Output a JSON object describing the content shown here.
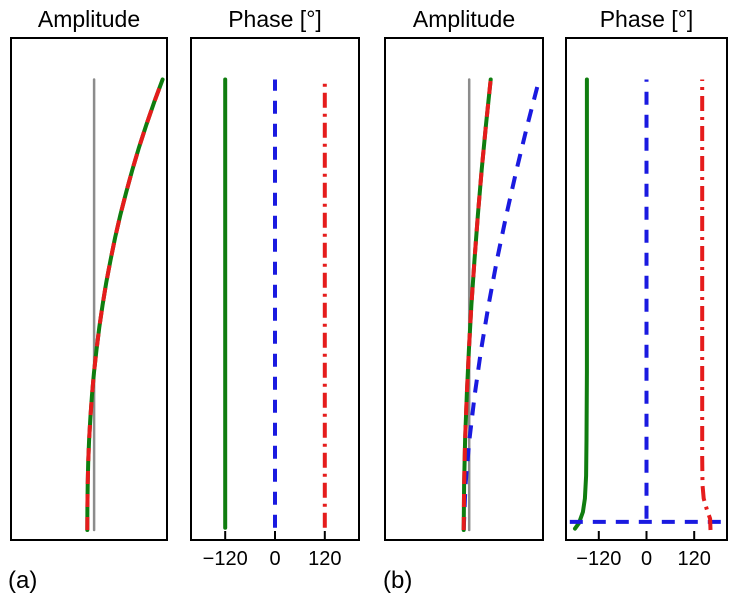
{
  "figure": {
    "panel_a_label": "(a)",
    "panel_b_label": "(b)"
  },
  "chart_data": [
    {
      "id": "a-amplitude",
      "type": "line",
      "title": "Amplitude",
      "group": "(a)",
      "xlabel": "",
      "ylabel": "",
      "grid": false,
      "legend": "none",
      "xlim": [
        -1.2,
        1.05
      ],
      "ylim": [
        -0.02,
        1.09
      ],
      "series": [
        {
          "name": "undeformed-reference-gray",
          "color": "#8c8c8c",
          "width": 2.5,
          "style": "solid",
          "points": [
            [
              0,
              0
            ],
            [
              0,
              1
            ]
          ]
        },
        {
          "name": "amplitude-green-solid",
          "color": "#0f7d0f",
          "width": 4,
          "style": "solid",
          "points": [
            [
              -0.1,
              0
            ],
            [
              -0.099,
              0.05
            ],
            [
              -0.094,
              0.1
            ],
            [
              -0.086,
              0.15
            ],
            [
              -0.073,
              0.2
            ],
            [
              -0.055,
              0.25
            ],
            [
              -0.031,
              0.3
            ],
            [
              -0.002,
              0.35
            ],
            [
              0.034,
              0.4
            ],
            [
              0.075,
              0.45
            ],
            [
              0.123,
              0.5
            ],
            [
              0.178,
              0.55
            ],
            [
              0.24,
              0.6
            ],
            [
              0.308,
              0.65
            ],
            [
              0.384,
              0.7
            ],
            [
              0.468,
              0.75
            ],
            [
              0.559,
              0.8
            ],
            [
              0.657,
              0.85
            ],
            [
              0.763,
              0.9
            ],
            [
              0.877,
              0.95
            ],
            [
              1.0,
              1.0
            ]
          ]
        },
        {
          "name": "amplitude-red-dashed",
          "color": "#e51c1c",
          "width": 4,
          "style": "dashed",
          "points": [
            [
              -0.1,
              0
            ],
            [
              -0.099,
              0.05
            ],
            [
              -0.094,
              0.1
            ],
            [
              -0.086,
              0.15
            ],
            [
              -0.073,
              0.2
            ],
            [
              -0.055,
              0.25
            ],
            [
              -0.031,
              0.3
            ],
            [
              -0.002,
              0.35
            ],
            [
              0.034,
              0.4
            ],
            [
              0.075,
              0.45
            ],
            [
              0.123,
              0.5
            ],
            [
              0.178,
              0.55
            ],
            [
              0.24,
              0.6
            ],
            [
              0.308,
              0.65
            ],
            [
              0.384,
              0.7
            ],
            [
              0.468,
              0.75
            ],
            [
              0.559,
              0.8
            ],
            [
              0.657,
              0.85
            ],
            [
              0.763,
              0.9
            ],
            [
              0.877,
              0.95
            ],
            [
              1.0,
              1.0
            ]
          ]
        }
      ]
    },
    {
      "id": "a-phase",
      "type": "line",
      "title": "Phase [°]",
      "group": "(a)",
      "xlabel": "",
      "ylabel": "",
      "grid": false,
      "legend": "none",
      "xlim": [
        -200,
        200
      ],
      "ylim": [
        -0.02,
        1.09
      ],
      "x_ticks": [
        {
          "value": -120,
          "label": "−120"
        },
        {
          "value": 0,
          "label": "0"
        },
        {
          "value": 120,
          "label": "120"
        }
      ],
      "series": [
        {
          "name": "phase-green-solid",
          "color": "#0f7d0f",
          "width": 4,
          "style": "solid",
          "points": [
            [
              -120,
              0.005
            ],
            [
              -120,
              1.0
            ]
          ]
        },
        {
          "name": "phase-blue-dashed",
          "color": "#1a1ae0",
          "width": 4,
          "style": "dashed",
          "points": [
            [
              0,
              0.005
            ],
            [
              0,
              1.0
            ]
          ]
        },
        {
          "name": "phase-red-dashdot",
          "color": "#e51c1c",
          "width": 4,
          "style": "dashdot",
          "points": [
            [
              120,
              0.005
            ],
            [
              120,
              1.0
            ]
          ]
        }
      ]
    },
    {
      "id": "b-amplitude",
      "type": "line",
      "title": "Amplitude",
      "group": "(b)",
      "xlabel": "",
      "ylabel": "",
      "grid": false,
      "legend": "none",
      "xlim": [
        -1.2,
        1.05
      ],
      "ylim": [
        -0.02,
        1.09
      ],
      "series": [
        {
          "name": "undeformed-reference-gray",
          "color": "#8c8c8c",
          "width": 2.5,
          "style": "solid",
          "points": [
            [
              0,
              0
            ],
            [
              0,
              1
            ]
          ]
        },
        {
          "name": "amplitude-blue-dashed",
          "color": "#1a1ae0",
          "width": 4,
          "style": "dashed",
          "points": [
            [
              -0.08,
              0
            ],
            [
              -0.053,
              0.1
            ],
            [
              0.003,
              0.2
            ],
            [
              0.079,
              0.3
            ],
            [
              0.172,
              0.4
            ],
            [
              0.28,
              0.5
            ],
            [
              0.401,
              0.6
            ],
            [
              0.536,
              0.7
            ],
            [
              0.683,
              0.8
            ],
            [
              0.841,
              0.9
            ],
            [
              1.01,
              1.0
            ]
          ]
        },
        {
          "name": "amplitude-green-solid",
          "color": "#0f7d0f",
          "width": 4,
          "style": "solid",
          "points": [
            [
              -0.08,
              0
            ],
            [
              -0.074,
              0.1
            ],
            [
              -0.059,
              0.2
            ],
            [
              -0.035,
              0.3
            ],
            [
              -0.005,
              0.4
            ],
            [
              0.032,
              0.5
            ],
            [
              0.076,
              0.6
            ],
            [
              0.125,
              0.7
            ],
            [
              0.181,
              0.8
            ],
            [
              0.243,
              0.9
            ],
            [
              0.31,
              1.0
            ]
          ]
        },
        {
          "name": "amplitude-red-dashed",
          "color": "#e51c1c",
          "width": 4,
          "style": "dashed",
          "points": [
            [
              -0.08,
              0
            ],
            [
              -0.074,
              0.1
            ],
            [
              -0.059,
              0.2
            ],
            [
              -0.035,
              0.3
            ],
            [
              -0.005,
              0.4
            ],
            [
              0.032,
              0.5
            ],
            [
              0.076,
              0.6
            ],
            [
              0.125,
              0.7
            ],
            [
              0.181,
              0.8
            ],
            [
              0.243,
              0.9
            ],
            [
              0.31,
              1.0
            ]
          ]
        }
      ]
    },
    {
      "id": "b-phase",
      "type": "line",
      "title": "Phase [°]",
      "group": "(b)",
      "xlabel": "",
      "ylabel": "",
      "grid": false,
      "legend": "none",
      "xlim": [
        -200,
        200
      ],
      "ylim": [
        -0.02,
        1.09
      ],
      "x_ticks": [
        {
          "value": -120,
          "label": "−120"
        },
        {
          "value": 0,
          "label": "0"
        },
        {
          "value": 120,
          "label": "120"
        }
      ],
      "series": [
        {
          "name": "phase-green-solid",
          "color": "#0f7d0f",
          "width": 4,
          "style": "solid",
          "points": [
            [
              -180,
              0.003
            ],
            [
              -170,
              0.015
            ],
            [
              -160,
              0.04
            ],
            [
              -155,
              0.07
            ],
            [
              -152,
              0.12
            ],
            [
              -151,
              0.2
            ],
            [
              -150,
              0.35
            ],
            [
              -150,
              1.0
            ]
          ]
        },
        {
          "name": "phase-blue-wrap-dashed",
          "color": "#1a1ae0",
          "width": 4,
          "style": "dashed",
          "points": [
            [
              -193,
              0.018
            ],
            [
              193,
              0.018
            ]
          ]
        },
        {
          "name": "phase-blue-dashed",
          "color": "#1a1ae0",
          "width": 4,
          "style": "dashed",
          "points": [
            [
              0,
              0.025
            ],
            [
              0,
              1.0
            ]
          ]
        },
        {
          "name": "phase-red-dashdot",
          "color": "#e51c1c",
          "width": 4,
          "style": "dashdot",
          "points": [
            [
              161,
              0.0
            ],
            [
              160,
              0.025
            ],
            [
              152,
              0.045
            ],
            [
              144,
              0.07
            ],
            [
              141,
              0.1
            ],
            [
              140,
              0.16
            ],
            [
              140,
              1.0
            ]
          ]
        }
      ]
    }
  ]
}
